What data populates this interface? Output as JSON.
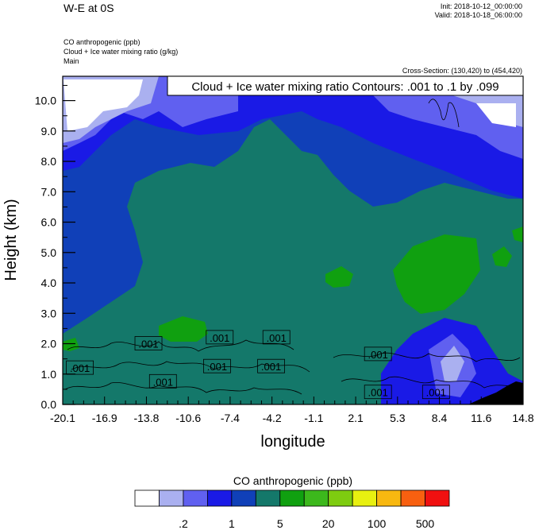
{
  "header": {
    "title": "W-E at 0S",
    "init": "Init: 2018-10-12_00:00:00",
    "valid": "Valid: 2018-10-18_06:00:00",
    "field1": "CO anthropogenic   (ppb)",
    "field2": "Cloud + Ice water mixing ratio   (g/kg)",
    "field3": "Main",
    "cross_section": "Cross-Section: (130,420) to (454,420)"
  },
  "chart_data": {
    "type": "heatmap",
    "title": "Cloud + Ice water mixing ratio Contours: .001 to .1 by .099",
    "xlabel": "longitude",
    "ylabel": "Height (km)",
    "xlim": [
      -20.1,
      14.8
    ],
    "ylim": [
      0,
      10.8
    ],
    "x_ticks": [
      "-20.1",
      "-16.9",
      "-13.8",
      "-10.6",
      "-7.4",
      "-4.2",
      "-1.1",
      "2.1",
      "5.3",
      "8.4",
      "11.6",
      "14.8"
    ],
    "y_ticks": [
      "0.0",
      "1.0",
      "2.0",
      "3.0",
      "4.0",
      "5.0",
      "6.0",
      "7.0",
      "8.0",
      "9.0",
      "10.0"
    ],
    "contour_labels": [
      {
        "text": ".001",
        "x": -18.8,
        "h": 1.2
      },
      {
        "text": ".001",
        "x": -13.6,
        "h": 2.0
      },
      {
        "text": ".001",
        "x": -12.5,
        "h": 0.75
      },
      {
        "text": ".001",
        "x": -8.2,
        "h": 2.2
      },
      {
        "text": ".001",
        "x": -8.4,
        "h": 1.25
      },
      {
        "text": ".001",
        "x": -3.9,
        "h": 2.2
      },
      {
        "text": ".001",
        "x": -4.3,
        "h": 1.25
      },
      {
        "text": ".001",
        "x": 3.8,
        "h": 1.65
      },
      {
        "text": ".001",
        "x": 3.8,
        "h": 0.4
      },
      {
        "text": ".001",
        "x": 8.2,
        "h": 0.4
      }
    ],
    "colorbar": {
      "title": "CO anthropogenic  (ppb)",
      "colors": [
        "#ffffff",
        "#aab0f0",
        "#6060f0",
        "#1a1ae6",
        "#1040b8",
        "#14786a",
        "#10a010",
        "#3cb81c",
        "#7ecc10",
        "#e8f010",
        "#f8b810",
        "#f86010",
        "#f01010"
      ],
      "labels": [
        ".2",
        "1",
        "5",
        "20",
        "100",
        "500"
      ]
    }
  }
}
